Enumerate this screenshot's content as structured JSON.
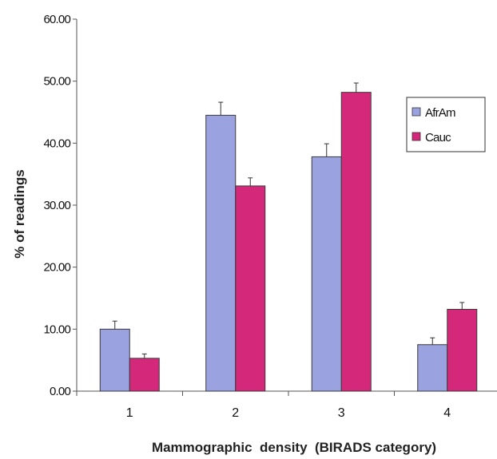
{
  "chart_data": {
    "type": "bar",
    "categories": [
      "1",
      "2",
      "3",
      "4"
    ],
    "series": [
      {
        "name": "AfrAm",
        "values": [
          10.0,
          44.5,
          37.8,
          7.5
        ],
        "errors": [
          1.3,
          2.1,
          2.1,
          1.1
        ],
        "color": "#9aa3e0"
      },
      {
        "name": "Cauc",
        "values": [
          5.3,
          33.1,
          48.2,
          13.2
        ],
        "errors": [
          0.7,
          1.3,
          1.5,
          1.1
        ],
        "color": "#d4287a"
      }
    ],
    "ylim": [
      0,
      60
    ],
    "yticks": [
      "0.00",
      "10.00",
      "20.00",
      "30.00",
      "40.00",
      "50.00",
      "60.00"
    ],
    "ylabel": "% of readings",
    "xlabel": "Mammographic  density  (BIRADS category)",
    "legend": "right",
    "grid": false
  }
}
